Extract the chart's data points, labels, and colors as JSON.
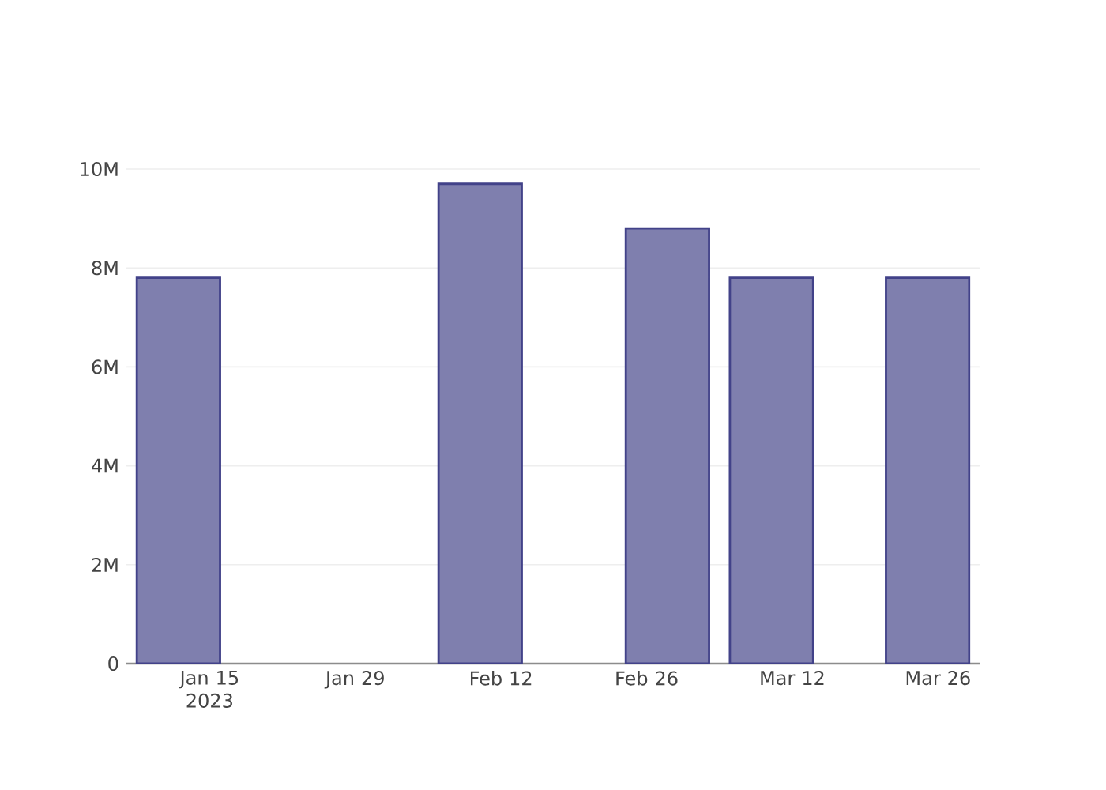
{
  "chart_data": {
    "type": "bar",
    "x": [
      "2023-01-12",
      "2023-02-10",
      "2023-02-28",
      "2023-03-10",
      "2023-03-25"
    ],
    "values": [
      7800000,
      9700000,
      8800000,
      7800000,
      7800000
    ],
    "color": "#7f7fae",
    "xlim": [
      "2023-01-07",
      "2023-03-30"
    ],
    "xticks": [
      {
        "value": "2023-01-15",
        "label": "Jan 15 2023"
      },
      {
        "value": "2023-01-29",
        "label": "Jan 29"
      },
      {
        "value": "2023-02-12",
        "label": "Feb 12"
      },
      {
        "value": "2023-02-26",
        "label": "Feb 26"
      },
      {
        "value": "2023-03-12",
        "label": "Mar 12"
      },
      {
        "value": "2023-03-26",
        "label": "Mar 26"
      }
    ],
    "ylim": [
      0,
      10000000
    ],
    "yticks": [
      0,
      {
        "value": 2000000,
        "label": "2M"
      },
      {
        "value": 4000000,
        "label": "4M"
      },
      {
        "value": 6000000,
        "label": "6M"
      },
      {
        "value": 8000000,
        "label": "8M"
      },
      {
        "value": 10000000,
        "label": "10M"
      }
    ],
    "grid": "y"
  }
}
